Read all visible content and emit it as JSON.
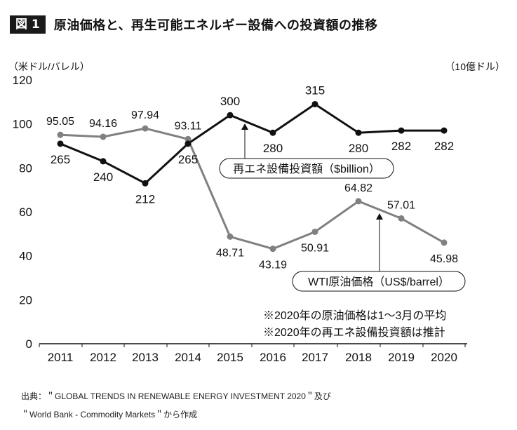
{
  "figure": {
    "badge": "図 1",
    "title": "原油価格と、再生可能エネルギー設備への投資額の推移"
  },
  "source_lines": [
    "出典：＂GLOBAL TRENDS IN RENEWABLE ENERGY INVESTMENT 2020＂及び",
    "＂World Bank - Commodity Markets＂から作成"
  ],
  "chart_data": {
    "type": "line",
    "x": [
      "2011",
      "2012",
      "2013",
      "2014",
      "2015",
      "2016",
      "2017",
      "2018",
      "2019",
      "2020"
    ],
    "left_axis": {
      "label": "（米ドル/バレル）",
      "range": [
        0,
        120
      ],
      "ticks": [
        "0",
        "20",
        "40",
        "60",
        "80",
        "100",
        "120"
      ]
    },
    "right_axis": {
      "label": "（10億ドル）"
    },
    "series": [
      {
        "name": "WTI原油価格（US$/barrel）",
        "color": "#808080",
        "values": [
          95.05,
          94.16,
          97.94,
          93.11,
          48.71,
          43.19,
          50.91,
          64.82,
          57.01,
          45.98
        ],
        "labels": [
          "95.05",
          "94.16",
          "97.94",
          "93.11",
          "48.71",
          "43.19",
          "50.91",
          "64.82",
          "57.01",
          "45.98"
        ]
      },
      {
        "name": "再エネ設備投資額（$billion）",
        "color": "#111111",
        "values": [
          265,
          240,
          212,
          265,
          300,
          280,
          315,
          280,
          282,
          282
        ],
        "plot_values": [
          91,
          83,
          73,
          91,
          104,
          96,
          109,
          96,
          97,
          97
        ],
        "labels": [
          "265",
          "240",
          "212",
          "265",
          "300",
          "280",
          "315",
          "280",
          "282",
          "282"
        ]
      }
    ],
    "annotations": [
      "※2020年の原油価格は1～3月の平均",
      "※2020年の再エネ設備投資額は推計"
    ]
  }
}
